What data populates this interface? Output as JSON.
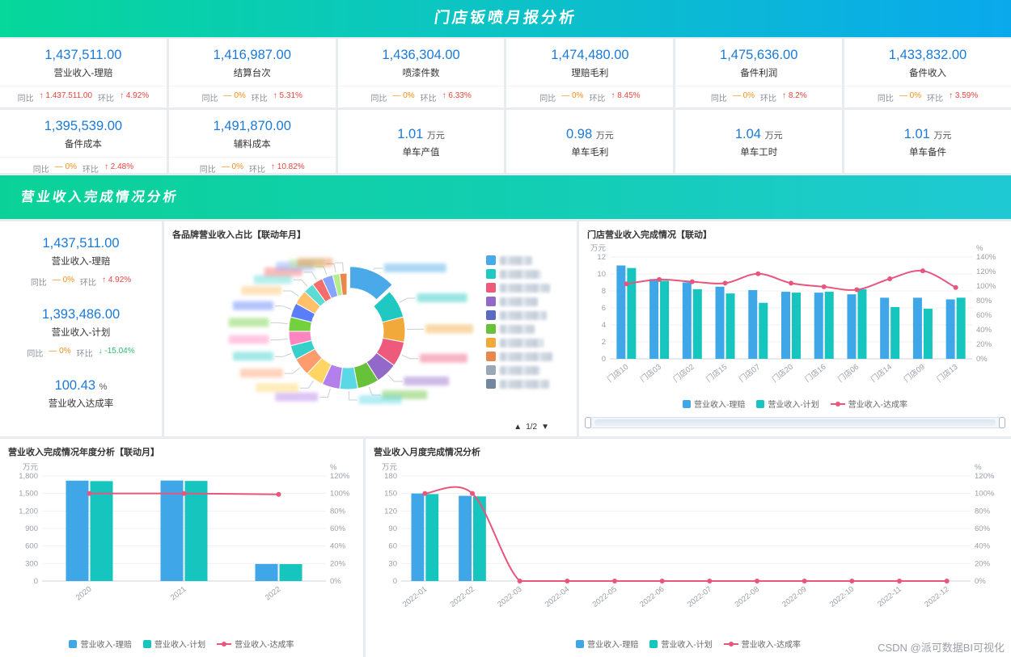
{
  "page": {
    "watermark": "CSDN @派可数据BI可视化"
  },
  "header": {
    "title": "门店钣喷月报分析"
  },
  "section_banner": {
    "title": "营业收入完成情况分析"
  },
  "colors": {
    "bar_claim": "#3fa7e8",
    "bar_plan": "#16c5bd",
    "line_rate": "#e8557d",
    "value_blue": "#1a7ad9",
    "up_red": "#e8433c",
    "down_green": "#2eb872",
    "flat_orange": "#fa8c16"
  },
  "kpi_row1": [
    {
      "value": "1,437,511.00",
      "label": "营业收入-理赔",
      "yoy_label": "同比",
      "yoy": "↑ 1.437.511.00",
      "yoy_dir": "up",
      "mom_label": "环比",
      "mom": "↑ 4.92%",
      "mom_dir": "up"
    },
    {
      "value": "1,416,987.00",
      "label": "结算台次",
      "yoy_label": "同比",
      "yoy": "— 0%",
      "yoy_dir": "flat",
      "mom_label": "环比",
      "mom": "↑ 5.31%",
      "mom_dir": "up"
    },
    {
      "value": "1,436,304.00",
      "label": "喷漆件数",
      "yoy_label": "同比",
      "yoy": "— 0%",
      "yoy_dir": "flat",
      "mom_label": "环比",
      "mom": "↑ 6.33%",
      "mom_dir": "up"
    },
    {
      "value": "1,474,480.00",
      "label": "理赔毛利",
      "yoy_label": "同比",
      "yoy": "— 0%",
      "yoy_dir": "flat",
      "mom_label": "环比",
      "mom": "↑ 8.45%",
      "mom_dir": "up"
    },
    {
      "value": "1,475,636.00",
      "label": "备件利润",
      "yoy_label": "同比",
      "yoy": "— 0%",
      "yoy_dir": "flat",
      "mom_label": "环比",
      "mom": "↑ 8.2%",
      "mom_dir": "up"
    },
    {
      "value": "1,433,832.00",
      "label": "备件收入",
      "yoy_label": "同比",
      "yoy": "— 0%",
      "yoy_dir": "flat",
      "mom_label": "环比",
      "mom": "↑ 3.59%",
      "mom_dir": "up"
    }
  ],
  "kpi_row2": [
    {
      "type": "trend",
      "value": "1,395,539.00",
      "label": "备件成本",
      "yoy_label": "同比",
      "yoy": "— 0%",
      "yoy_dir": "flat",
      "mom_label": "环比",
      "mom": "↑ 2.48%",
      "mom_dir": "up"
    },
    {
      "type": "trend",
      "value": "1,491,870.00",
      "label": "辅料成本",
      "yoy_label": "同比",
      "yoy": "— 0%",
      "yoy_dir": "flat",
      "mom_label": "环比",
      "mom": "↑ 10.82%",
      "mom_dir": "up"
    },
    {
      "type": "unit",
      "value": "1.01",
      "unit": "万元",
      "label": "单车产值"
    },
    {
      "type": "unit",
      "value": "0.98",
      "unit": "万元",
      "label": "单车毛利"
    },
    {
      "type": "unit",
      "value": "1.04",
      "unit": "万元",
      "label": "单车工时"
    },
    {
      "type": "unit",
      "value": "1.01",
      "unit": "万元",
      "label": "单车备件"
    }
  ],
  "left_stats": [
    {
      "type": "trend",
      "value": "1,437,511.00",
      "label": "营业收入-理赔",
      "yoy_label": "同比",
      "yoy": "— 0%",
      "yoy_dir": "flat",
      "mom_label": "环比",
      "mom": "↑ 4.92%",
      "mom_dir": "up"
    },
    {
      "type": "trend",
      "value": "1,393,486.00",
      "label": "营业收入-计划",
      "yoy_label": "同比",
      "yoy": "— 0%",
      "yoy_dir": "flat",
      "mom_label": "环比",
      "mom": "↓ -15.04%",
      "mom_dir": "down"
    },
    {
      "type": "unit",
      "value": "100.43",
      "unit": "%",
      "label": "营业收入达成率"
    }
  ],
  "panels": {
    "donut": {
      "title": "各品牌营业收入占比【联动年月】",
      "page_up": "▲",
      "page": "1/2",
      "page_down": "▼"
    },
    "store": {
      "title": "门店营业收入完成情况【联动】"
    },
    "year": {
      "title": "营业收入完成情况年度分析【联动月】"
    },
    "month": {
      "title": "营业收入月度完成情况分析"
    }
  },
  "legend_labels": {
    "claim": "营业收入-理赔",
    "plan": "营业收入-计划",
    "rate": "营业收入-达成率"
  },
  "chart_data": [
    {
      "id": "brand_share",
      "type": "pie",
      "title": "各品牌营业收入占比【联动年月】",
      "slices": [
        {
          "value": 13,
          "color": "#4aa9e9",
          "selected": true
        },
        {
          "value": 8,
          "color": "#1fc8c0"
        },
        {
          "value": 7,
          "color": "#f2a93b"
        },
        {
          "value": 7,
          "color": "#ee5a7b"
        },
        {
          "value": 6,
          "color": "#9268c8"
        },
        {
          "value": 6,
          "color": "#67c23a"
        },
        {
          "value": 5,
          "color": "#5ad8e6"
        },
        {
          "value": 5,
          "color": "#b37feb"
        },
        {
          "value": 5,
          "color": "#ffd666"
        },
        {
          "value": 5,
          "color": "#ff9c6e"
        },
        {
          "value": 4,
          "color": "#36cfc9"
        },
        {
          "value": 4,
          "color": "#ff85c0"
        },
        {
          "value": 4,
          "color": "#73d13d"
        },
        {
          "value": 4,
          "color": "#597ef7"
        },
        {
          "value": 4,
          "color": "#ffc069"
        },
        {
          "value": 3,
          "color": "#5cdbd3"
        },
        {
          "value": 3,
          "color": "#f56c6c"
        },
        {
          "value": 3,
          "color": "#85a5ff"
        },
        {
          "value": 2,
          "color": "#b7eb8f"
        },
        {
          "value": 2,
          "color": "#e8884d"
        }
      ],
      "legend_colors": [
        "#4aa9e9",
        "#1fc8c0",
        "#ee5a7b",
        "#9268c8",
        "#5b6bbf",
        "#67c23a",
        "#f2a93b",
        "#e8884d",
        "#9aa7b5",
        "#7286a0"
      ]
    },
    {
      "id": "store_completion",
      "type": "bar",
      "title": "门店营业收入完成情况【联动】",
      "categories": [
        "门店10",
        "门店03",
        "门店02",
        "门店15",
        "门店07",
        "门店20",
        "门店16",
        "门店06",
        "门店14",
        "门店09",
        "门店13"
      ],
      "series": [
        {
          "name": "营业收入-理赔",
          "kind": "bar",
          "values": [
            11.0,
            9.4,
            9.0,
            8.5,
            8.1,
            7.9,
            7.8,
            7.6,
            7.2,
            7.2,
            7.0
          ]
        },
        {
          "name": "营业收入-计划",
          "kind": "bar",
          "values": [
            10.7,
            9.2,
            8.2,
            7.7,
            6.6,
            7.8,
            7.9,
            8.2,
            6.1,
            5.9,
            7.2
          ]
        },
        {
          "name": "营业收入-达成率",
          "kind": "line",
          "values": [
            103,
            109,
            106,
            104,
            117,
            104,
            99,
            95,
            110,
            121,
            98
          ]
        }
      ],
      "ylabel": "万元",
      "y2label": "%",
      "ylim": [
        0,
        12
      ],
      "ystep": 2,
      "y2lim": [
        0,
        140
      ],
      "y2step": 20
    },
    {
      "id": "year_completion",
      "type": "bar",
      "title": "营业收入完成情况年度分析【联动月】",
      "categories": [
        "2020",
        "2021",
        "2022"
      ],
      "series": [
        {
          "name": "营业收入-理赔",
          "kind": "bar",
          "values": [
            1720,
            1722,
            292
          ]
        },
        {
          "name": "营业收入-计划",
          "kind": "bar",
          "values": [
            1712,
            1715,
            290
          ]
        },
        {
          "name": "营业收入-达成率",
          "kind": "line",
          "values": [
            100,
            100,
            99
          ]
        }
      ],
      "ylabel": "万元",
      "y2label": "%",
      "ylim": [
        0,
        1800
      ],
      "ystep": 300,
      "y2lim": [
        0,
        120
      ],
      "y2step": 20
    },
    {
      "id": "month_completion",
      "type": "bar",
      "title": "营业收入月度完成情况分析",
      "categories": [
        "2022-01",
        "2022-02",
        "2022-03",
        "2022-04",
        "2022-05",
        "2022-06",
        "2022-07",
        "2022-08",
        "2022-09",
        "2022-10",
        "2022-11",
        "2022-12"
      ],
      "series": [
        {
          "name": "营业收入-理赔",
          "kind": "bar",
          "values": [
            150,
            146,
            0,
            0,
            0,
            0,
            0,
            0,
            0,
            0,
            0,
            0
          ]
        },
        {
          "name": "营业收入-计划",
          "kind": "bar",
          "values": [
            149,
            145,
            0,
            0,
            0,
            0,
            0,
            0,
            0,
            0,
            0,
            0
          ]
        },
        {
          "name": "营业收入-达成率",
          "kind": "line",
          "values": [
            100,
            100,
            0,
            0,
            0,
            0,
            0,
            0,
            0,
            0,
            0,
            0
          ]
        }
      ],
      "ylabel": "万元",
      "y2label": "%",
      "ylim": [
        0,
        180
      ],
      "ystep": 30,
      "y2lim": [
        0,
        120
      ],
      "y2step": 20
    }
  ]
}
